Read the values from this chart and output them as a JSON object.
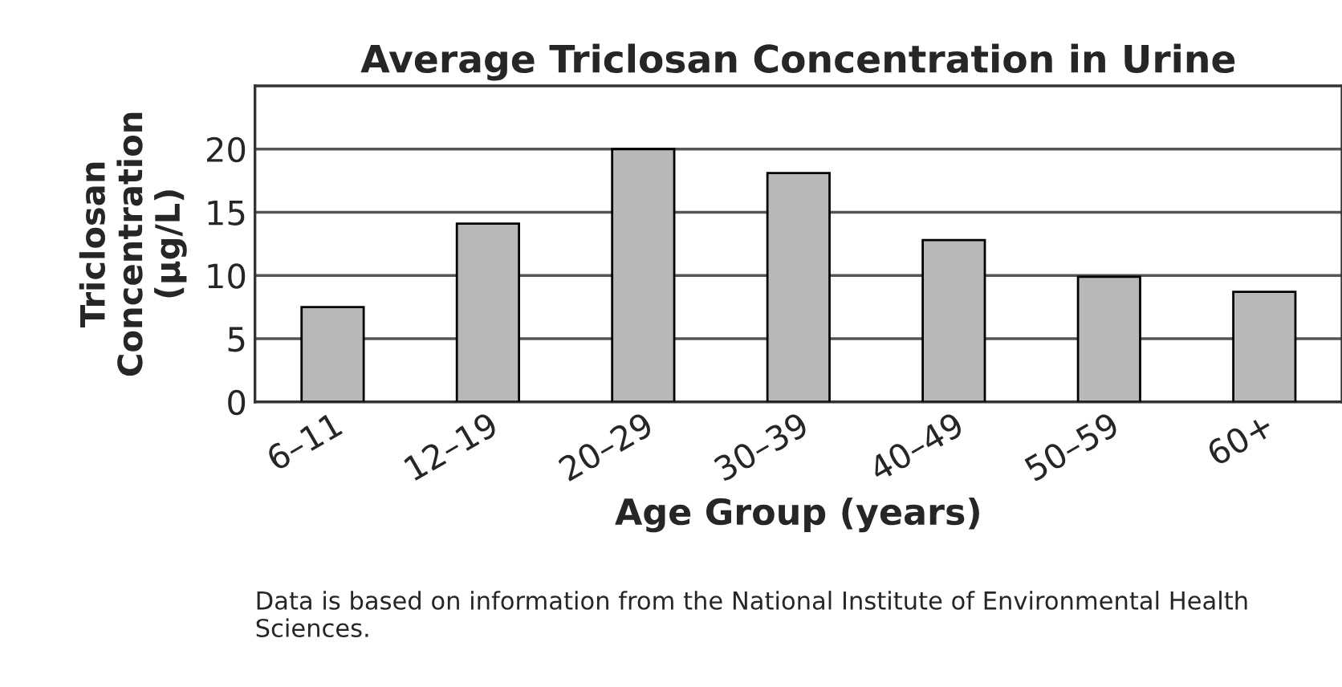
{
  "chart_data": {
    "type": "bar",
    "title": "Average Triclosan Concentration in Urine",
    "xlabel": "Age Group (years)",
    "ylabel": "Triclosan\nConcentration\n(µg/L)",
    "categories": [
      "6–11",
      "12–19",
      "20–29",
      "30–39",
      "40–49",
      "50–59",
      "60+"
    ],
    "values": [
      7.5,
      14.1,
      20,
      18.1,
      12.8,
      9.9,
      8.7
    ],
    "color": "#b8b8b8",
    "ylim": [
      0,
      25
    ],
    "yticks": [
      0,
      5,
      10,
      15,
      20
    ],
    "grid": "y",
    "annotations": [
      "Data is based on information from the National Institute of Environmental Health Sciences."
    ]
  }
}
